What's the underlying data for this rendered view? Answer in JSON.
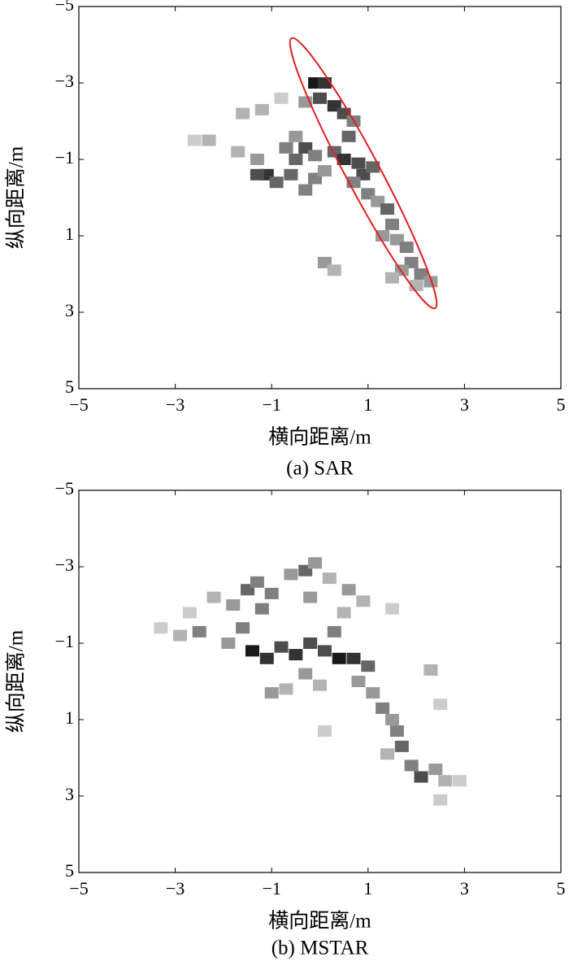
{
  "chart_data": [
    {
      "type": "heatmap",
      "caption": "(a) SAR",
      "xlabel": "横向距离/m",
      "ylabel": "纵向距离/m",
      "xlim": [
        -5,
        5
      ],
      "ylim": [
        -5,
        5
      ],
      "y_inverted": true,
      "colormap": "gray",
      "xticks": [
        {
          "value": -5,
          "label": "−5"
        },
        {
          "value": -3,
          "label": "−3"
        },
        {
          "value": -1,
          "label": "−1"
        },
        1,
        3,
        5
      ],
      "yticks": [
        {
          "value": -5,
          "label": "−5"
        },
        {
          "value": -3,
          "label": "−3"
        },
        {
          "value": -1,
          "label": "−1"
        },
        1,
        3,
        5
      ],
      "cells": [
        [
          -0.1,
          -3.0,
          0.9
        ],
        [
          0.1,
          -3.0,
          0.8
        ],
        [
          0.0,
          -2.6,
          0.7
        ],
        [
          0.3,
          -2.4,
          0.8
        ],
        [
          0.5,
          -2.2,
          0.7
        ],
        [
          0.7,
          -2.0,
          0.5
        ],
        [
          0.6,
          -1.6,
          0.6
        ],
        [
          0.3,
          -1.2,
          0.6
        ],
        [
          0.5,
          -1.0,
          0.8
        ],
        [
          0.8,
          -0.9,
          0.7
        ],
        [
          0.9,
          -0.6,
          0.7
        ],
        [
          1.1,
          -0.8,
          0.6
        ],
        [
          0.7,
          -0.4,
          0.5
        ],
        [
          1.0,
          -0.1,
          0.5
        ],
        [
          1.2,
          0.1,
          0.4
        ],
        [
          1.4,
          0.3,
          0.6
        ],
        [
          1.5,
          0.7,
          0.5
        ],
        [
          1.3,
          1.0,
          0.4
        ],
        [
          1.6,
          1.1,
          0.4
        ],
        [
          1.8,
          1.3,
          0.5
        ],
        [
          1.9,
          1.7,
          0.5
        ],
        [
          1.7,
          1.9,
          0.4
        ],
        [
          2.1,
          2.0,
          0.5
        ],
        [
          2.3,
          2.2,
          0.4
        ],
        [
          2.0,
          2.3,
          0.3
        ],
        [
          0.1,
          1.7,
          0.4
        ],
        [
          0.3,
          1.9,
          0.3
        ],
        [
          1.5,
          2.1,
          0.3
        ],
        [
          -2.3,
          -1.5,
          0.3
        ],
        [
          -2.6,
          -1.5,
          0.2
        ],
        [
          -1.7,
          -1.2,
          0.3
        ],
        [
          -1.3,
          -1.0,
          0.4
        ],
        [
          -1.1,
          -0.6,
          0.8
        ],
        [
          -1.3,
          -0.6,
          0.7
        ],
        [
          -0.9,
          -0.4,
          0.6
        ],
        [
          -0.5,
          -1.0,
          0.6
        ],
        [
          -0.3,
          -1.3,
          0.7
        ],
        [
          -0.1,
          -1.1,
          0.5
        ],
        [
          -0.6,
          -0.6,
          0.6
        ],
        [
          -0.3,
          -0.2,
          0.5
        ],
        [
          -0.5,
          -1.6,
          0.4
        ],
        [
          -0.7,
          -1.3,
          0.5
        ],
        [
          -1.6,
          -2.2,
          0.3
        ],
        [
          -1.2,
          -2.3,
          0.3
        ],
        [
          -0.8,
          -2.6,
          0.2
        ],
        [
          -0.3,
          -2.5,
          0.4
        ],
        [
          -0.1,
          -0.5,
          0.5
        ],
        [
          0.1,
          -0.7,
          0.4
        ]
      ]
    },
    {
      "type": "heatmap",
      "caption": "(b) MSTAR",
      "xlabel": "横向距离/m",
      "ylabel": "纵向距离/m",
      "xlim": [
        -5,
        5
      ],
      "ylim": [
        -5,
        5
      ],
      "y_inverted": true,
      "colormap": "gray",
      "xticks": [
        {
          "value": -5,
          "label": "−5"
        },
        {
          "value": -3,
          "label": "−3"
        },
        {
          "value": -1,
          "label": "−1"
        },
        1,
        3,
        5
      ],
      "yticks": [
        {
          "value": -5,
          "label": "−5"
        },
        {
          "value": -3,
          "label": "−3"
        },
        {
          "value": -1,
          "label": "−1"
        },
        1,
        3,
        5
      ],
      "cells": [
        [
          -3.3,
          -1.4,
          0.2
        ],
        [
          -2.9,
          -1.2,
          0.3
        ],
        [
          -2.5,
          -1.3,
          0.5
        ],
        [
          -2.7,
          -1.8,
          0.2
        ],
        [
          -2.2,
          -2.2,
          0.3
        ],
        [
          -1.8,
          -2.0,
          0.4
        ],
        [
          -1.5,
          -2.4,
          0.6
        ],
        [
          -1.3,
          -2.6,
          0.5
        ],
        [
          -1.0,
          -2.3,
          0.5
        ],
        [
          -0.6,
          -2.8,
          0.4
        ],
        [
          -0.3,
          -2.9,
          0.6
        ],
        [
          -0.1,
          -3.1,
          0.4
        ],
        [
          0.2,
          -2.7,
          0.3
        ],
        [
          0.6,
          -2.4,
          0.4
        ],
        [
          0.9,
          -2.1,
          0.3
        ],
        [
          0.5,
          -1.8,
          0.3
        ],
        [
          -0.2,
          -2.2,
          0.4
        ],
        [
          -1.2,
          -1.9,
          0.5
        ],
        [
          -1.6,
          -1.4,
          0.5
        ],
        [
          -1.9,
          -1.0,
          0.4
        ],
        [
          -1.4,
          -0.8,
          0.9
        ],
        [
          -1.1,
          -0.6,
          0.8
        ],
        [
          -0.8,
          -0.9,
          0.7
        ],
        [
          -0.5,
          -0.7,
          0.8
        ],
        [
          -0.2,
          -1.0,
          0.7
        ],
        [
          0.1,
          -0.8,
          0.7
        ],
        [
          0.4,
          -0.6,
          0.9
        ],
        [
          0.7,
          -0.6,
          0.8
        ],
        [
          1.0,
          -0.4,
          0.6
        ],
        [
          0.3,
          -1.3,
          0.5
        ],
        [
          -0.3,
          -0.2,
          0.4
        ],
        [
          -0.7,
          0.2,
          0.3
        ],
        [
          -1.0,
          0.3,
          0.4
        ],
        [
          0.0,
          0.1,
          0.3
        ],
        [
          0.8,
          0.0,
          0.4
        ],
        [
          1.1,
          0.3,
          0.4
        ],
        [
          1.3,
          0.7,
          0.5
        ],
        [
          1.5,
          1.0,
          0.4
        ],
        [
          1.6,
          1.3,
          0.5
        ],
        [
          1.7,
          1.7,
          0.6
        ],
        [
          1.4,
          1.9,
          0.3
        ],
        [
          1.9,
          2.2,
          0.5
        ],
        [
          2.1,
          2.5,
          0.7
        ],
        [
          2.4,
          2.3,
          0.4
        ],
        [
          2.6,
          2.6,
          0.3
        ],
        [
          2.9,
          2.6,
          0.2
        ],
        [
          2.5,
          3.1,
          0.2
        ],
        [
          2.3,
          -0.3,
          0.3
        ],
        [
          2.5,
          0.6,
          0.2
        ],
        [
          1.5,
          -1.9,
          0.2
        ],
        [
          0.1,
          1.3,
          0.2
        ]
      ]
    }
  ]
}
